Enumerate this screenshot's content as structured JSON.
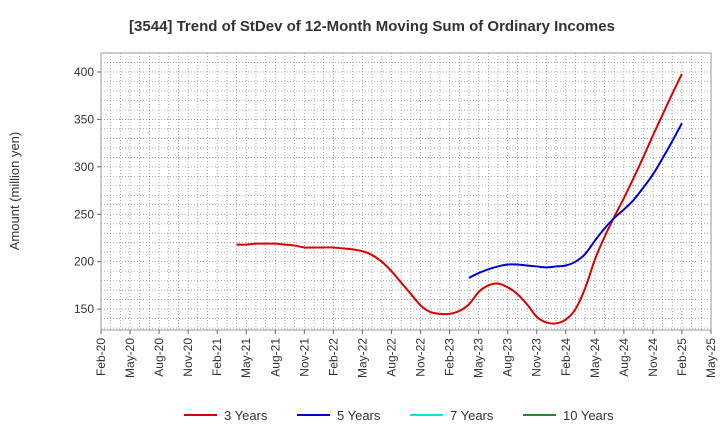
{
  "chart_data": {
    "type": "line",
    "title": "[3544]  Trend of StDev of 12-Month Moving Sum of Ordinary Incomes",
    "xlabel": "",
    "ylabel": "Amount (million yen)",
    "ylim": [
      128,
      420
    ],
    "yticks": [
      150,
      200,
      250,
      300,
      350,
      400
    ],
    "x_range": [
      "2020-02",
      "2025-05"
    ],
    "x_tick_labels": [
      "Feb-20",
      "May-20",
      "Aug-20",
      "Nov-20",
      "Feb-21",
      "May-21",
      "Aug-21",
      "Nov-21",
      "Feb-22",
      "May-22",
      "Aug-22",
      "Nov-22",
      "Feb-23",
      "May-23",
      "Aug-23",
      "Nov-23",
      "Feb-24",
      "May-24",
      "Aug-24",
      "Nov-24",
      "Feb-25",
      "May-25"
    ],
    "grid": true,
    "legend_position": "bottom",
    "series": [
      {
        "name": "3 Years",
        "color": "#dd0000",
        "x": [
          "2021-04",
          "2021-05",
          "2021-06",
          "2021-07",
          "2021-08",
          "2021-09",
          "2021-10",
          "2021-11",
          "2021-12",
          "2022-01",
          "2022-02",
          "2022-03",
          "2022-04",
          "2022-05",
          "2022-06",
          "2022-07",
          "2022-08",
          "2022-09",
          "2022-10",
          "2022-11",
          "2022-12",
          "2023-01",
          "2023-02",
          "2023-03",
          "2023-04",
          "2023-05",
          "2023-06",
          "2023-07",
          "2023-08",
          "2023-09",
          "2023-10",
          "2023-11",
          "2023-12",
          "2024-01",
          "2024-02",
          "2024-03",
          "2024-04",
          "2024-05",
          "2024-06",
          "2024-07",
          "2024-08",
          "2024-09",
          "2024-10",
          "2024-11",
          "2024-12",
          "2025-01",
          "2025-02"
        ],
        "values": [
          218,
          218,
          219,
          219,
          219,
          218,
          217,
          215,
          215,
          215,
          215,
          214,
          213,
          211,
          207,
          200,
          190,
          178,
          166,
          154,
          147,
          145,
          145,
          148,
          155,
          168,
          175,
          177,
          173,
          166,
          155,
          142,
          136,
          135,
          139,
          150,
          172,
          202,
          226,
          247,
          267,
          288,
          310,
          333,
          355,
          377,
          398
        ]
      },
      {
        "name": "5 Years",
        "color": "#0000cc",
        "x": [
          "2023-04",
          "2023-05",
          "2023-06",
          "2023-07",
          "2023-08",
          "2023-09",
          "2023-10",
          "2023-11",
          "2023-12",
          "2024-01",
          "2024-02",
          "2024-03",
          "2024-04",
          "2024-05",
          "2024-06",
          "2024-07",
          "2024-08",
          "2024-09",
          "2024-10",
          "2024-11",
          "2024-12",
          "2025-01",
          "2025-02"
        ],
        "values": [
          183,
          188,
          192,
          195,
          197,
          197,
          196,
          195,
          194,
          195,
          196,
          200,
          208,
          222,
          235,
          246,
          255,
          265,
          278,
          292,
          309,
          327,
          346
        ]
      },
      {
        "name": "7 Years",
        "color": "#00e5ee",
        "x": [],
        "values": []
      },
      {
        "name": "10 Years",
        "color": "#228b22",
        "x": [],
        "values": []
      }
    ]
  }
}
